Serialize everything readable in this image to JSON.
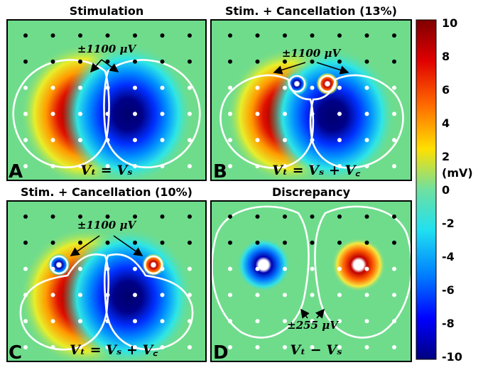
{
  "panels": [
    {
      "id": "A",
      "title": "Stimulation",
      "letter": "A",
      "equation": "Vₜ = Vₛ",
      "annotation": "±1100 μV",
      "cancellation_pads": false
    },
    {
      "id": "B",
      "title": "Stim. + Cancellation (13%)",
      "letter": "B",
      "equation": "Vₜ = Vₛ + V꜀",
      "annotation": "±1100 μV",
      "cancellation_pads": true
    },
    {
      "id": "C",
      "title": "Stim. + Cancellation (10%)",
      "letter": "C",
      "equation": "Vₜ = Vₛ + V꜀",
      "annotation": "±1100 μV",
      "cancellation_pads": true
    },
    {
      "id": "D",
      "title": "Discrepancy",
      "letter": "D",
      "equation": "Vₜ − Vₛ",
      "annotation": "±255 μV",
      "cancellation_pads": false
    }
  ],
  "colorbar": {
    "unit": "(mV)",
    "range": [
      -10,
      10
    ],
    "ticks": [
      "10",
      "8",
      "6",
      "4",
      "2",
      "0",
      "-2",
      "-4",
      "-6",
      "-8",
      "-10"
    ],
    "colors": [
      "#7f0000",
      "#ff0000",
      "#ffff00",
      "#6fe0a0",
      "#00ffff",
      "#0000ff",
      "#00007f"
    ]
  },
  "colors": {
    "background": "#6fdc8c",
    "contour": "#ffffff",
    "electrode_outside": "#000000",
    "electrode_inside": "#ffffff"
  }
}
